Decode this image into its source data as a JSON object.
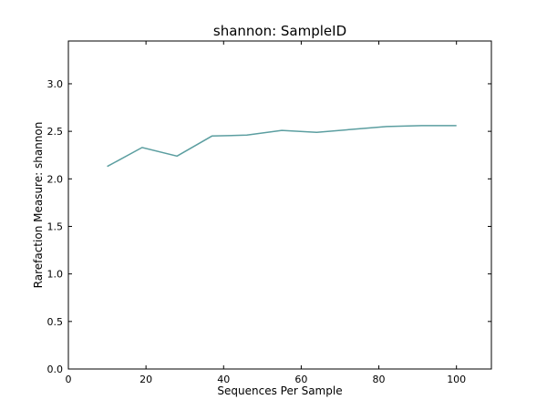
{
  "chart_data": {
    "type": "line",
    "title": "shannon: SampleID",
    "xlabel": "Sequences Per Sample",
    "ylabel": "Rarefaction Measure: shannon",
    "xlim": [
      0,
      109
    ],
    "ylim": [
      0.0,
      3.45
    ],
    "xticks": [
      0,
      20,
      40,
      60,
      80,
      100
    ],
    "yticks": [
      0.0,
      0.5,
      1.0,
      1.5,
      2.0,
      2.5,
      3.0
    ],
    "ytick_labels": [
      "0.0",
      "0.5",
      "1.0",
      "1.5",
      "2.0",
      "2.5",
      "3.0"
    ],
    "grid": false,
    "series": [
      {
        "color": "#5b9ea0",
        "x": [
          10,
          19,
          28,
          37,
          46,
          55,
          64,
          73,
          82,
          91,
          100
        ],
        "y": [
          2.13,
          2.33,
          2.24,
          2.45,
          2.46,
          2.51,
          2.49,
          2.52,
          2.55,
          2.56,
          2.56
        ]
      }
    ]
  }
}
